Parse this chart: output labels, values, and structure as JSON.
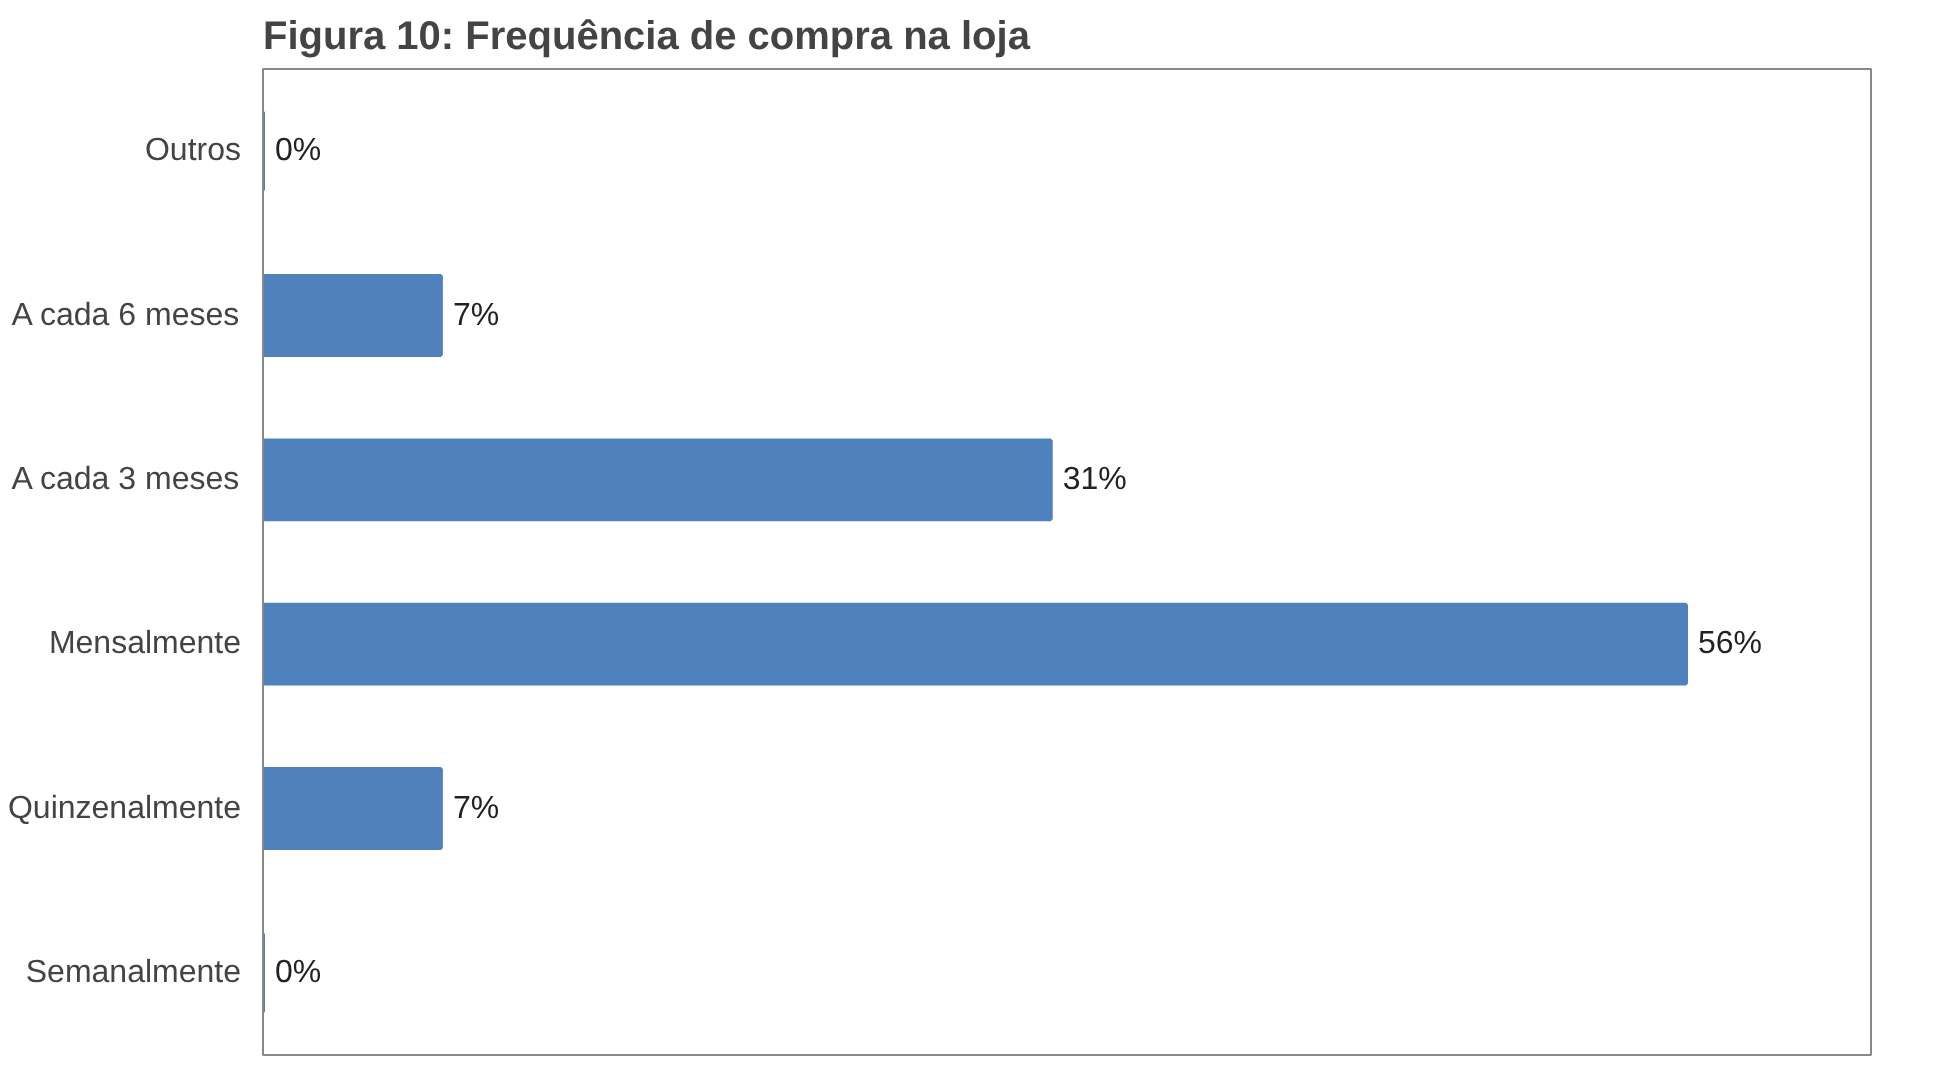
{
  "chart_data": {
    "type": "bar",
    "orientation": "horizontal",
    "title": "Figura 10: Frequência de compra na loja",
    "categories": [
      "Outros",
      "A cada 6 meses",
      "A cada 3 meses",
      "Mensalmente",
      "Quinzenalmente",
      "Semanalmente"
    ],
    "values": [
      0,
      7,
      31,
      56,
      7,
      0
    ],
    "value_labels": [
      "0%",
      "7%",
      "31%",
      "56%",
      "7%",
      "0%"
    ],
    "color": "#4f81bd",
    "grid": false
  }
}
